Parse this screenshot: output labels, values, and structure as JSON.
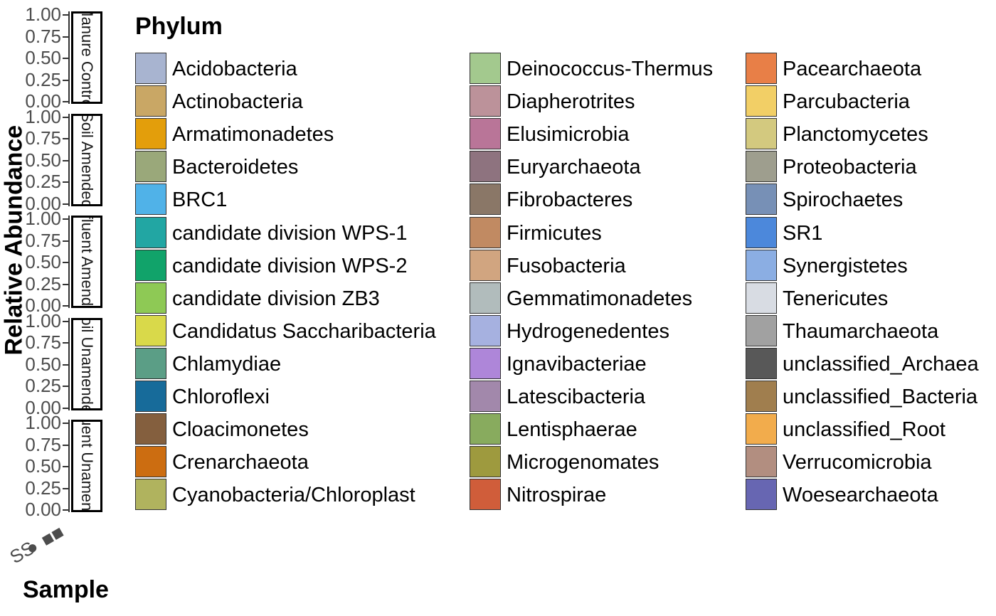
{
  "chart_data": {
    "type": "bar",
    "stacked": true,
    "xlabel": "Sample",
    "ylabel": "Relative Abundance",
    "ylim": [
      0,
      1
    ],
    "y_ticks": [
      "0.00",
      "0.25",
      "0.50",
      "0.75",
      "1.00"
    ],
    "x_tick_labels": [
      "SS",
      "●",
      "■■"
    ],
    "facets": [
      "Manure Control",
      "Soil Amended",
      "Effluent Amended",
      "Soil Unamended",
      "Effluent Unamended"
    ],
    "legend": {
      "title": "Phylum",
      "placement": "right",
      "entries": [
        {
          "name": "Acidobacteria",
          "color": "#A8B4D0"
        },
        {
          "name": "Actinobacteria",
          "color": "#C9A765"
        },
        {
          "name": "Armatimonadetes",
          "color": "#E39E0B"
        },
        {
          "name": "Bacteroidetes",
          "color": "#9AA87A"
        },
        {
          "name": "BRC1",
          "color": "#50B2E8"
        },
        {
          "name": "candidate division WPS-1",
          "color": "#22A6A3"
        },
        {
          "name": "candidate division WPS-2",
          "color": "#11A36A"
        },
        {
          "name": "candidate division ZB3",
          "color": "#8EC955"
        },
        {
          "name": "Candidatus Saccharibacteria",
          "color": "#D9D94A"
        },
        {
          "name": "Chlamydiae",
          "color": "#5B9E86"
        },
        {
          "name": "Chloroflexi",
          "color": "#176B9A"
        },
        {
          "name": "Cloacimonetes",
          "color": "#845F3E"
        },
        {
          "name": "Crenarchaeota",
          "color": "#CC6D11"
        },
        {
          "name": "Cyanobacteria/Chloroplast",
          "color": "#B0B35E"
        },
        {
          "name": "Deinococcus-Thermus",
          "color": "#A3C98E"
        },
        {
          "name": "Diapherotrites",
          "color": "#BC929A"
        },
        {
          "name": "Elusimicrobia",
          "color": "#B97598"
        },
        {
          "name": "Euryarchaeota",
          "color": "#8E737F"
        },
        {
          "name": "Fibrobacteres",
          "color": "#8A7767"
        },
        {
          "name": "Firmicutes",
          "color": "#C18A62"
        },
        {
          "name": "Fusobacteria",
          "color": "#D1A580"
        },
        {
          "name": "Gemmatimonadetes",
          "color": "#B1BCBC"
        },
        {
          "name": "Hydrogenedentes",
          "color": "#A6B1E0"
        },
        {
          "name": "Ignavibacteriae",
          "color": "#AE86D9"
        },
        {
          "name": "Latescibacteria",
          "color": "#A288AB"
        },
        {
          "name": "Lentisphaerae",
          "color": "#88AB5E"
        },
        {
          "name": "Microgenomates",
          "color": "#9E9A3E"
        },
        {
          "name": "Nitrospirae",
          "color": "#D05D3A"
        },
        {
          "name": "Pacearchaeota",
          "color": "#E87F47"
        },
        {
          "name": "Parcubacteria",
          "color": "#F2CF66"
        },
        {
          "name": "Planctomycetes",
          "color": "#D3C97F"
        },
        {
          "name": "Proteobacteria",
          "color": "#9E9E8E"
        },
        {
          "name": "Spirochaetes",
          "color": "#7790B6"
        },
        {
          "name": "SR1",
          "color": "#4C88DB"
        },
        {
          "name": "Synergistetes",
          "color": "#8BAEE3"
        },
        {
          "name": "Tenericutes",
          "color": "#D8DCE3"
        },
        {
          "name": "Thaumarchaeota",
          "color": "#A1A1A1"
        },
        {
          "name": "unclassified_Archaea",
          "color": "#585858"
        },
        {
          "name": "unclassified_Bacteria",
          "color": "#A07E4E"
        },
        {
          "name": "unclassified_Root",
          "color": "#F2AC4C"
        },
        {
          "name": "Verrucomicrobia",
          "color": "#B28E80"
        },
        {
          "name": "Woesearchaeota",
          "color": "#6766B2"
        }
      ]
    }
  }
}
